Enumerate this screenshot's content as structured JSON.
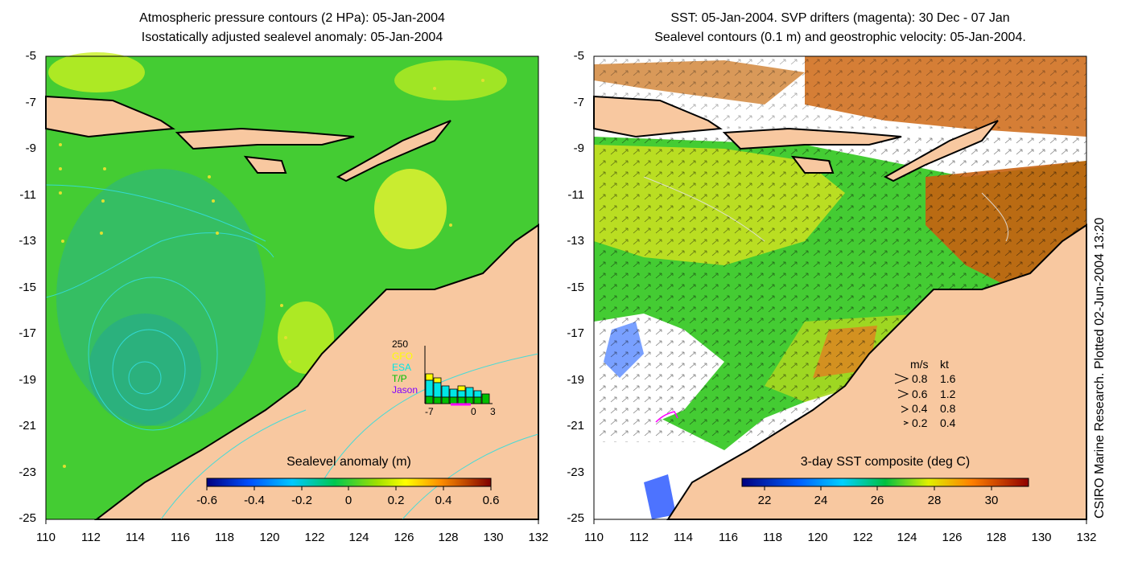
{
  "left_panel": {
    "title_line1": "Atmospheric pressure contours (2 HPa): 05-Jan-2004",
    "title_line2": "Isostatically adjusted sealevel anomaly: 05-Jan-2004",
    "colorbar_title": "Sealevel anomaly (m)",
    "colorbar_ticks": [
      "-0.6",
      "-0.4",
      "-0.2",
      "0",
      "0.2",
      "0.4",
      "0.6"
    ],
    "inset": {
      "ymax_label": "250",
      "legend": [
        {
          "label": "GFO",
          "color": "#ffff00"
        },
        {
          "label": "ESA",
          "color": "#00e6e6"
        },
        {
          "label": "T/P",
          "color": "#00c000"
        },
        {
          "label": "Jason",
          "color": "#8000ff"
        }
      ],
      "x_labels": [
        "-7",
        "0",
        "3"
      ]
    }
  },
  "right_panel": {
    "title_line1": "SST: 05-Jan-2004. SVP drifters (magenta): 30 Dec - 07 Jan",
    "title_line2": "Sealevel contours (0.1 m) and geostrophic velocity: 05-Jan-2004.",
    "colorbar_title": "3-day SST composite (deg C)",
    "colorbar_ticks": [
      "22",
      "24",
      "26",
      "28",
      "30"
    ],
    "velocity_legend": {
      "header_ms": "m/s",
      "header_kt": "kt",
      "rows": [
        {
          "ms": "0.8",
          "kt": "1.6"
        },
        {
          "ms": "0.6",
          "kt": "1.2"
        },
        {
          "ms": "0.4",
          "kt": "0.8"
        },
        {
          "ms": "0.2",
          "kt": "0.4"
        }
      ]
    }
  },
  "axes": {
    "y_ticks": [
      "-5",
      "-7",
      "-9",
      "-11",
      "-13",
      "-15",
      "-17",
      "-19",
      "-21",
      "-23",
      "-25"
    ],
    "x_ticks": [
      "110",
      "112",
      "114",
      "116",
      "118",
      "120",
      "122",
      "124",
      "126",
      "128",
      "130",
      "132"
    ]
  },
  "credit": "CSIRO Marine Research. Plotted 02-Jun-2004 13:20",
  "colors": {
    "land": "#f8c8a0",
    "ocean_green": "#44cc33",
    "contour_cyan": "#33dddd"
  }
}
